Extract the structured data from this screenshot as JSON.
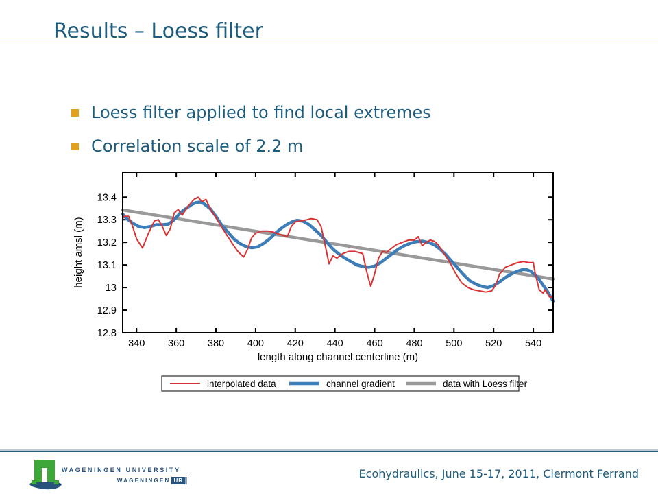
{
  "slide": {
    "title": "Results – Loess filter",
    "bullets": [
      "Loess filter applied to find local extremes",
      "Correlation scale of 2.2 m"
    ],
    "colors": {
      "accent": "#1d5c7d",
      "bullet_square": "#e0a21c"
    }
  },
  "footer": {
    "conference": "Ecohydraulics, June 15-17, 2011, Clermont Ferrand",
    "logo": {
      "line1": "WAGENINGEN UNIVERSITY",
      "line2": "WAGENINGEN",
      "badge": "UR"
    }
  },
  "chart_data": {
    "type": "line",
    "title": "",
    "xlabel": "length along channel centerline (m)",
    "ylabel": "height amsl (m)",
    "xlim": [
      333,
      550
    ],
    "ylim": [
      12.8,
      13.51
    ],
    "xticks": [
      340,
      360,
      380,
      400,
      420,
      440,
      460,
      480,
      500,
      520,
      540
    ],
    "yticks": [
      12.8,
      12.9,
      13,
      13.1,
      13.2,
      13.3,
      13.4
    ],
    "ytick_labels": [
      "12.8",
      "12.9",
      "13",
      "13.1",
      "13.2",
      "13.3",
      "13.4"
    ],
    "grid": false,
    "legend_position": "bottom",
    "frame_color": "#000000",
    "series": [
      {
        "name": "interpolated data",
        "color": "#d93333",
        "width": 2,
        "points": [
          [
            333,
            13.305
          ],
          [
            334,
            13.315
          ],
          [
            336,
            13.315
          ],
          [
            338,
            13.27
          ],
          [
            340,
            13.215
          ],
          [
            343,
            13.175
          ],
          [
            346,
            13.24
          ],
          [
            349,
            13.295
          ],
          [
            351,
            13.3
          ],
          [
            353,
            13.27
          ],
          [
            355,
            13.23
          ],
          [
            357,
            13.26
          ],
          [
            359,
            13.33
          ],
          [
            361,
            13.345
          ],
          [
            363,
            13.32
          ],
          [
            366,
            13.36
          ],
          [
            369,
            13.39
          ],
          [
            371,
            13.4
          ],
          [
            373,
            13.38
          ],
          [
            375,
            13.39
          ],
          [
            377,
            13.35
          ],
          [
            380,
            13.31
          ],
          [
            383,
            13.265
          ],
          [
            386,
            13.225
          ],
          [
            389,
            13.185
          ],
          [
            391,
            13.16
          ],
          [
            394,
            13.135
          ],
          [
            396,
            13.17
          ],
          [
            398,
            13.22
          ],
          [
            400,
            13.24
          ],
          [
            403,
            13.25
          ],
          [
            406,
            13.25
          ],
          [
            409,
            13.245
          ],
          [
            412,
            13.235
          ],
          [
            414,
            13.23
          ],
          [
            416,
            13.225
          ],
          [
            418,
            13.27
          ],
          [
            420,
            13.29
          ],
          [
            423,
            13.295
          ],
          [
            426,
            13.3
          ],
          [
            428,
            13.305
          ],
          [
            431,
            13.3
          ],
          [
            433,
            13.27
          ],
          [
            435,
            13.19
          ],
          [
            437,
            13.105
          ],
          [
            439,
            13.14
          ],
          [
            441,
            13.13
          ],
          [
            444,
            13.15
          ],
          [
            447,
            13.16
          ],
          [
            450,
            13.16
          ],
          [
            452,
            13.155
          ],
          [
            454,
            13.15
          ],
          [
            456,
            13.07
          ],
          [
            458,
            13.005
          ],
          [
            460,
            13.06
          ],
          [
            462,
            13.13
          ],
          [
            464,
            13.16
          ],
          [
            466,
            13.155
          ],
          [
            468,
            13.17
          ],
          [
            471,
            13.19
          ],
          [
            474,
            13.2
          ],
          [
            477,
            13.21
          ],
          [
            480,
            13.21
          ],
          [
            482,
            13.225
          ],
          [
            484,
            13.185
          ],
          [
            486,
            13.2
          ],
          [
            488,
            13.21
          ],
          [
            490,
            13.205
          ],
          [
            492,
            13.19
          ],
          [
            495,
            13.15
          ],
          [
            498,
            13.11
          ],
          [
            501,
            13.06
          ],
          [
            504,
            13.02
          ],
          [
            507,
            13.0
          ],
          [
            510,
            12.99
          ],
          [
            513,
            12.985
          ],
          [
            516,
            12.98
          ],
          [
            519,
            12.985
          ],
          [
            521,
            13.01
          ],
          [
            523,
            13.06
          ],
          [
            526,
            13.09
          ],
          [
            529,
            13.1
          ],
          [
            532,
            13.11
          ],
          [
            535,
            13.115
          ],
          [
            538,
            13.11
          ],
          [
            540,
            13.11
          ],
          [
            541,
            13.06
          ],
          [
            543,
            12.99
          ],
          [
            545,
            12.975
          ],
          [
            546,
            12.99
          ],
          [
            548,
            12.96
          ],
          [
            549,
            12.955
          ],
          [
            550,
            12.96
          ]
        ]
      },
      {
        "name": "channel gradient",
        "color": "#3d7db8",
        "width": 4.5,
        "points": [
          [
            333,
            13.325
          ],
          [
            335,
            13.305
          ],
          [
            338,
            13.285
          ],
          [
            341,
            13.27
          ],
          [
            344,
            13.265
          ],
          [
            347,
            13.27
          ],
          [
            350,
            13.278
          ],
          [
            353,
            13.278
          ],
          [
            356,
            13.28
          ],
          [
            359,
            13.3
          ],
          [
            362,
            13.33
          ],
          [
            365,
            13.35
          ],
          [
            368,
            13.368
          ],
          [
            370,
            13.376
          ],
          [
            372,
            13.378
          ],
          [
            374,
            13.37
          ],
          [
            377,
            13.35
          ],
          [
            380,
            13.315
          ],
          [
            383,
            13.275
          ],
          [
            386,
            13.245
          ],
          [
            389,
            13.215
          ],
          [
            392,
            13.195
          ],
          [
            395,
            13.182
          ],
          [
            398,
            13.176
          ],
          [
            401,
            13.18
          ],
          [
            404,
            13.195
          ],
          [
            407,
            13.215
          ],
          [
            410,
            13.24
          ],
          [
            413,
            13.262
          ],
          [
            416,
            13.28
          ],
          [
            419,
            13.293
          ],
          [
            421,
            13.297
          ],
          [
            424,
            13.293
          ],
          [
            427,
            13.278
          ],
          [
            430,
            13.255
          ],
          [
            433,
            13.23
          ],
          [
            436,
            13.2
          ],
          [
            439,
            13.17
          ],
          [
            442,
            13.148
          ],
          [
            445,
            13.13
          ],
          [
            448,
            13.115
          ],
          [
            451,
            13.1
          ],
          [
            454,
            13.093
          ],
          [
            457,
            13.09
          ],
          [
            460,
            13.095
          ],
          [
            463,
            13.11
          ],
          [
            466,
            13.13
          ],
          [
            469,
            13.15
          ],
          [
            472,
            13.17
          ],
          [
            475,
            13.185
          ],
          [
            478,
            13.196
          ],
          [
            481,
            13.203
          ],
          [
            484,
            13.205
          ],
          [
            487,
            13.2
          ],
          [
            490,
            13.19
          ],
          [
            493,
            13.17
          ],
          [
            496,
            13.145
          ],
          [
            499,
            13.115
          ],
          [
            502,
            13.085
          ],
          [
            505,
            13.055
          ],
          [
            508,
            13.03
          ],
          [
            511,
            13.015
          ],
          [
            514,
            13.005
          ],
          [
            517,
            13.0
          ],
          [
            520,
            13.008
          ],
          [
            523,
            13.025
          ],
          [
            526,
            13.045
          ],
          [
            529,
            13.06
          ],
          [
            532,
            13.072
          ],
          [
            535,
            13.08
          ],
          [
            537,
            13.078
          ],
          [
            539,
            13.07
          ],
          [
            541,
            13.055
          ],
          [
            543,
            13.035
          ],
          [
            545,
            13.01
          ],
          [
            547,
            12.985
          ],
          [
            549,
            12.955
          ],
          [
            550,
            12.94
          ]
        ]
      },
      {
        "name": "data with Loess filter",
        "color": "#999999",
        "width": 4.5,
        "points": [
          [
            333,
            13.343
          ],
          [
            550,
            13.038
          ]
        ]
      }
    ]
  }
}
